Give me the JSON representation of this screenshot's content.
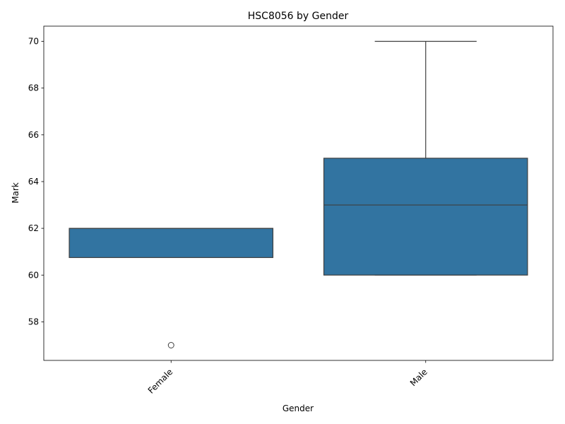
{
  "chart_data": {
    "type": "box",
    "title": "HSC8056 by Gender",
    "xlabel": "Gender",
    "ylabel": "Mark",
    "categories": [
      "Female",
      "Male"
    ],
    "boxes": [
      {
        "category": "Female",
        "whisker_low": 60.75,
        "q1": 60.75,
        "median": 62,
        "q3": 62,
        "whisker_high": 62,
        "outliers": [
          57
        ]
      },
      {
        "category": "Male",
        "whisker_low": 60,
        "q1": 60,
        "median": 63,
        "q3": 65,
        "whisker_high": 70,
        "outliers": []
      }
    ],
    "yticks": [
      58,
      60,
      62,
      64,
      66,
      68,
      70
    ],
    "ylim": [
      56.35,
      70.65
    ],
    "grid": false,
    "color": "#3274a1",
    "edge_color": "#3f3f3f"
  }
}
